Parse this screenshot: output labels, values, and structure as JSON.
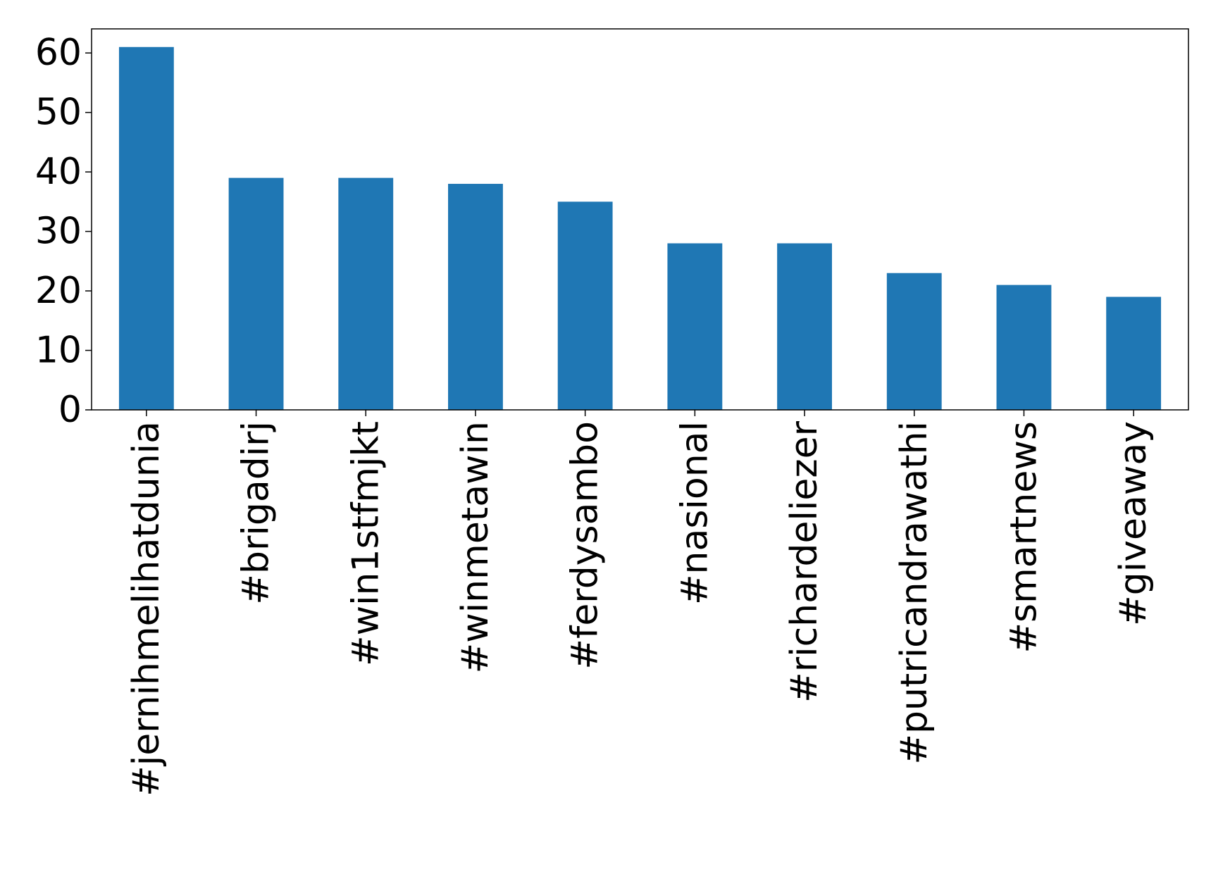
{
  "chart_data": {
    "type": "bar",
    "categories": [
      "#jernihmelihatdunia",
      "#brigadirj",
      "#win1stfmjkt",
      "#winmetawin",
      "#ferdysambo",
      "#nasional",
      "#richardeliezer",
      "#putricandrawathi",
      "#smartnews",
      "#giveaway"
    ],
    "values": [
      61,
      39,
      39,
      38,
      35,
      28,
      28,
      23,
      21,
      19
    ],
    "color": "#1f77b4",
    "ylim": [
      0,
      64.05
    ],
    "yticks": [
      0,
      10,
      20,
      30,
      40,
      50,
      60
    ],
    "grid": false
  }
}
